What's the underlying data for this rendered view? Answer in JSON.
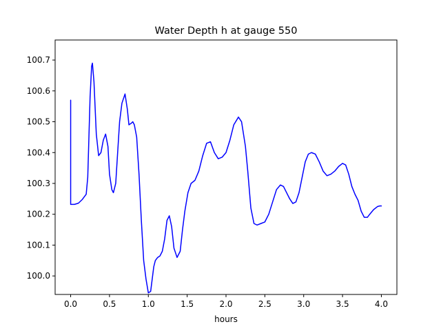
{
  "chart_data": {
    "type": "line",
    "title": "Water Depth h at gauge 550",
    "xlabel": "hours",
    "ylabel": "",
    "xlim": [
      -0.2,
      4.2
    ],
    "ylim": [
      99.94,
      100.765
    ],
    "xticks": [
      0.0,
      0.5,
      1.0,
      1.5,
      2.0,
      2.5,
      3.0,
      3.5,
      4.0
    ],
    "xtick_labels": [
      "0.0",
      "0.5",
      "1.0",
      "1.5",
      "2.0",
      "2.5",
      "3.0",
      "3.5",
      "4.0"
    ],
    "yticks": [
      100.0,
      100.1,
      100.2,
      100.3,
      100.4,
      100.5,
      100.6,
      100.7
    ],
    "ytick_labels": [
      "100.0",
      "100.1",
      "100.2",
      "100.3",
      "100.4",
      "100.5",
      "100.6",
      "100.7"
    ],
    "grid": false,
    "series": [
      {
        "color": "#0000ff",
        "x": [
          0.0,
          0.0,
          0.01,
          0.05,
          0.1,
          0.15,
          0.2,
          0.22,
          0.25,
          0.27,
          0.28,
          0.3,
          0.33,
          0.36,
          0.39,
          0.42,
          0.45,
          0.48,
          0.5,
          0.53,
          0.55,
          0.58,
          0.6,
          0.63,
          0.66,
          0.7,
          0.73,
          0.75,
          0.78,
          0.8,
          0.82,
          0.85,
          0.88,
          0.91,
          0.94,
          0.97,
          1.0,
          1.03,
          1.07,
          1.09,
          1.12,
          1.15,
          1.18,
          1.21,
          1.24,
          1.27,
          1.3,
          1.33,
          1.37,
          1.41,
          1.44,
          1.47,
          1.51,
          1.55,
          1.6,
          1.65,
          1.7,
          1.75,
          1.8,
          1.85,
          1.9,
          1.95,
          2.0,
          2.05,
          2.1,
          2.16,
          2.2,
          2.25,
          2.28,
          2.32,
          2.36,
          2.4,
          2.45,
          2.5,
          2.55,
          2.6,
          2.65,
          2.7,
          2.74,
          2.78,
          2.82,
          2.86,
          2.9,
          2.94,
          2.98,
          3.02,
          3.06,
          3.1,
          3.15,
          3.2,
          3.25,
          3.3,
          3.35,
          3.4,
          3.45,
          3.5,
          3.54,
          3.58,
          3.62,
          3.66,
          3.7,
          3.74,
          3.78,
          3.82,
          3.85,
          3.9,
          3.95,
          3.98,
          4.0
        ],
        "y": [
          100.57,
          100.232,
          100.232,
          100.232,
          100.236,
          100.248,
          100.265,
          100.32,
          100.58,
          100.68,
          100.69,
          100.63,
          100.46,
          100.39,
          100.4,
          100.44,
          100.46,
          100.42,
          100.33,
          100.28,
          100.27,
          100.3,
          100.38,
          100.5,
          100.56,
          100.59,
          100.54,
          100.49,
          100.495,
          100.5,
          100.49,
          100.45,
          100.33,
          100.18,
          100.05,
          99.99,
          99.945,
          99.95,
          100.03,
          100.05,
          100.06,
          100.065,
          100.08,
          100.12,
          100.18,
          100.195,
          100.16,
          100.09,
          100.06,
          100.08,
          100.15,
          100.21,
          100.27,
          100.3,
          100.31,
          100.34,
          100.39,
          100.43,
          100.435,
          100.4,
          100.38,
          100.385,
          100.4,
          100.44,
          100.49,
          100.515,
          100.5,
          100.42,
          100.34,
          100.22,
          100.17,
          100.165,
          100.17,
          100.175,
          100.2,
          100.24,
          100.28,
          100.295,
          100.29,
          100.27,
          100.25,
          100.235,
          100.24,
          100.27,
          100.32,
          100.37,
          100.395,
          100.4,
          100.395,
          100.37,
          100.34,
          100.325,
          100.33,
          100.34,
          100.355,
          100.365,
          100.36,
          100.33,
          100.29,
          100.265,
          100.245,
          100.21,
          100.19,
          100.19,
          100.2,
          100.215,
          100.225,
          100.227,
          100.227
        ]
      }
    ]
  }
}
